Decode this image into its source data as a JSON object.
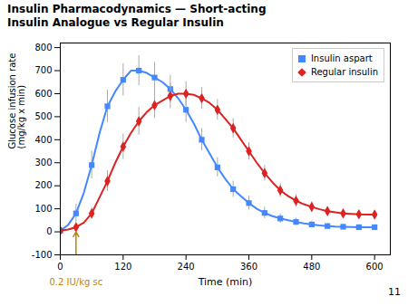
{
  "chart_data": {
    "type": "line",
    "title": "Insulin Pharmacodynamics — Short-acting",
    "subtitle": "Insulin Analogue vs Regular Insulin",
    "x_label": "Time (min)",
    "y_label": "Glucose infusion rate\n(mg/kg x min)",
    "x": [
      0,
      15,
      30,
      45,
      60,
      75,
      90,
      105,
      120,
      135,
      150,
      165,
      180,
      195,
      210,
      225,
      240,
      255,
      270,
      285,
      300,
      315,
      330,
      345,
      360,
      375,
      390,
      405,
      420,
      435,
      450,
      465,
      480,
      495,
      510,
      525,
      540,
      555,
      570,
      585,
      600
    ],
    "series": [
      {
        "name": "Insulin aspart",
        "color": "#4488ff",
        "marker": "square",
        "values": [
          5,
          30,
          80,
          170,
          290,
          430,
          545,
          610,
          660,
          700,
          700,
          690,
          670,
          650,
          620,
          580,
          530,
          470,
          400,
          340,
          280,
          230,
          185,
          155,
          125,
          100,
          82,
          68,
          58,
          50,
          43,
          37,
          32,
          28,
          25,
          23,
          22,
          21,
          20,
          20,
          20
        ],
        "errors": [
          10,
          null,
          40,
          null,
          60,
          null,
          70,
          null,
          70,
          null,
          65,
          null,
          65,
          null,
          60,
          null,
          55,
          null,
          48,
          null,
          42,
          null,
          35,
          null,
          30,
          null,
          25,
          null,
          20,
          null,
          16,
          null,
          14,
          null,
          12,
          null,
          10,
          null,
          10,
          null,
          10
        ]
      },
      {
        "name": "Regular insulin",
        "color": "#dd2222",
        "marker": "diamond",
        "values": [
          5,
          10,
          20,
          40,
          80,
          150,
          220,
          300,
          370,
          430,
          480,
          520,
          550,
          570,
          590,
          600,
          600,
          595,
          580,
          560,
          530,
          490,
          450,
          400,
          350,
          300,
          255,
          215,
          180,
          155,
          135,
          120,
          108,
          98,
          90,
          85,
          80,
          78,
          76,
          75,
          75
        ],
        "errors": [
          5,
          null,
          12,
          null,
          25,
          null,
          45,
          null,
          55,
          null,
          60,
          null,
          58,
          null,
          55,
          null,
          52,
          null,
          48,
          null,
          45,
          null,
          42,
          null,
          38,
          null,
          34,
          null,
          30,
          null,
          26,
          null,
          22,
          null,
          18,
          null,
          16,
          null,
          15,
          null,
          14
        ]
      }
    ],
    "xlim": [
      0,
      630
    ],
    "xticks": [
      0,
      120,
      240,
      360,
      480,
      600
    ],
    "ylim": [
      -100,
      820
    ],
    "yticks": [
      -100,
      0,
      100,
      200,
      300,
      400,
      500,
      600,
      700,
      800
    ],
    "grid": false,
    "legend": "upper right",
    "annotations": [
      {
        "text": "0.2 IU/kg sc",
        "x": 30,
        "y": 0
      },
      {
        "text": "11"
      }
    ]
  }
}
